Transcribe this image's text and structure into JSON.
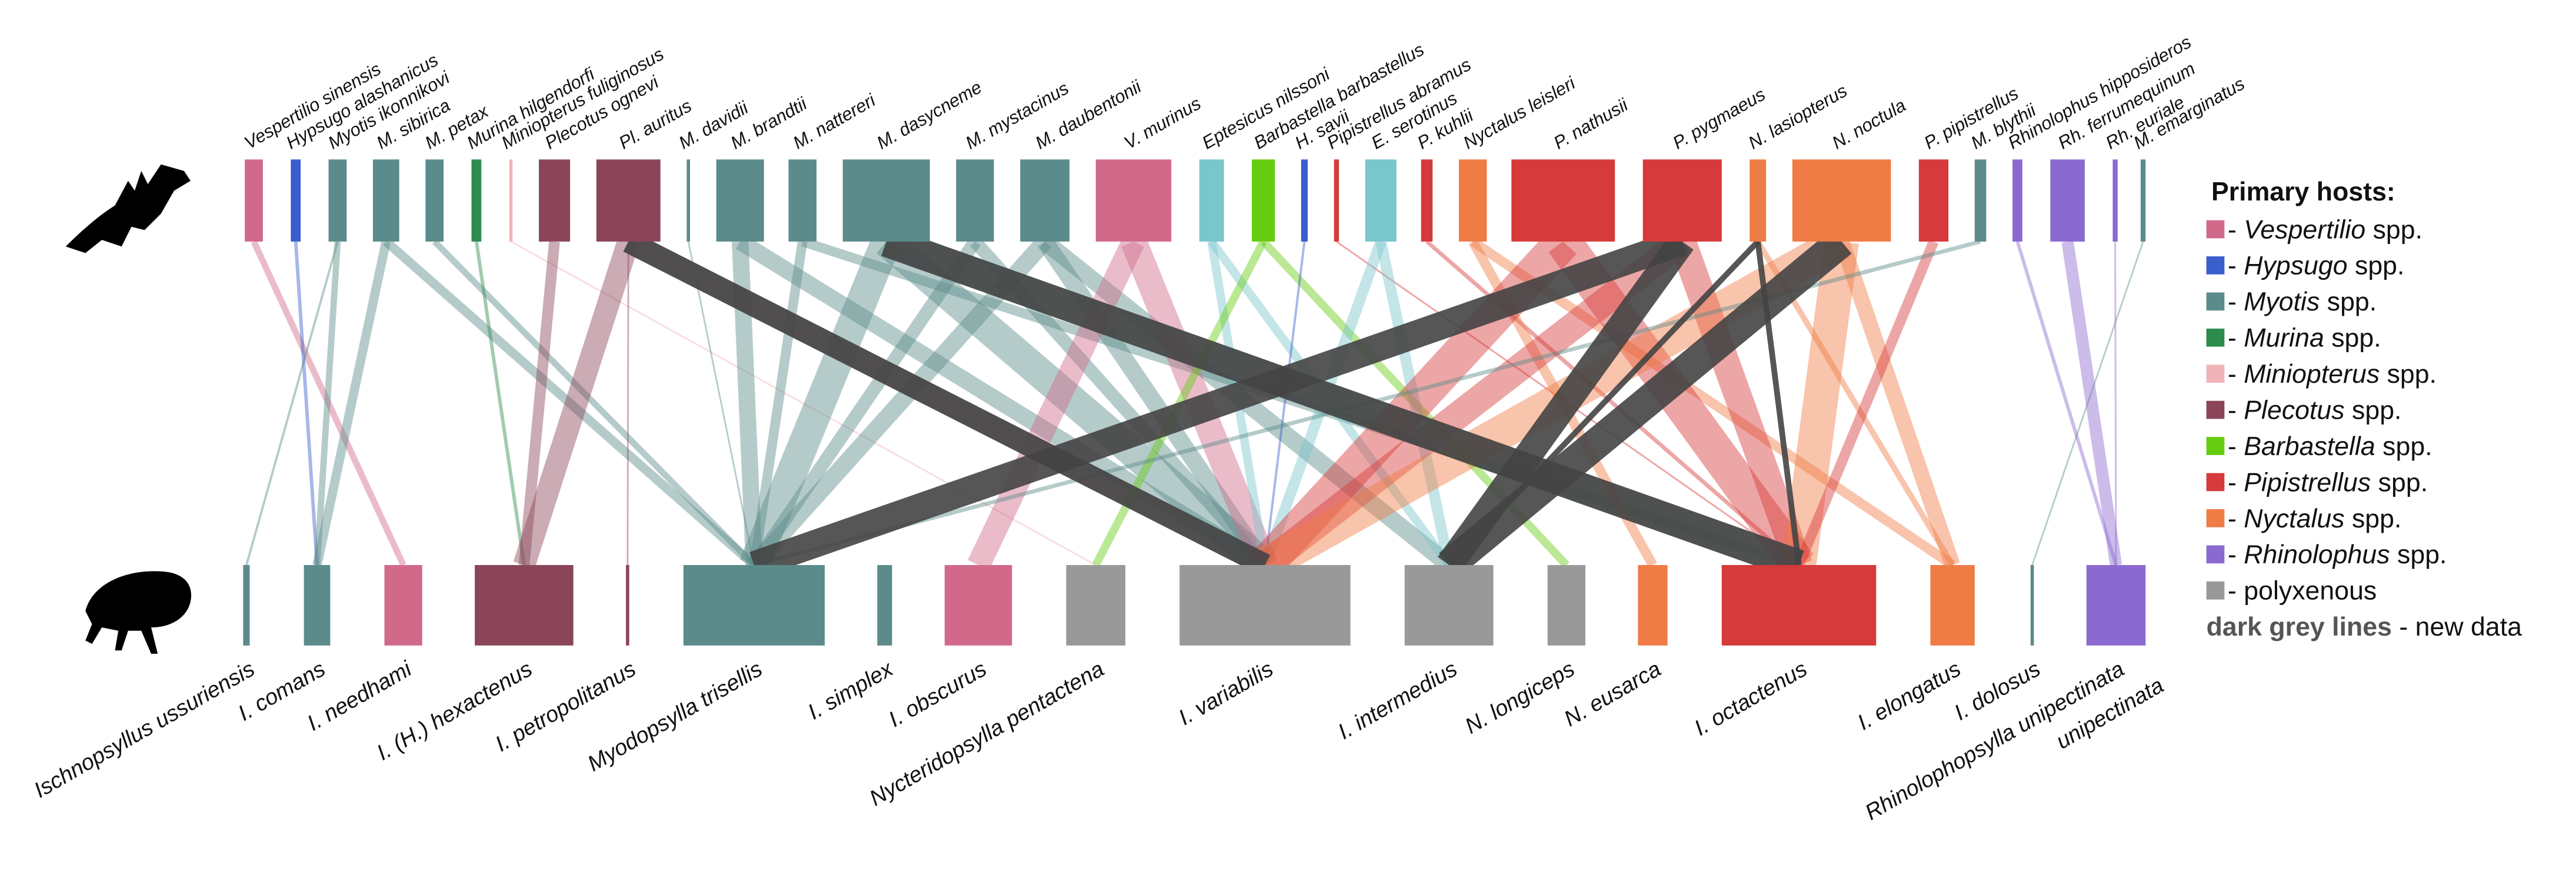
{
  "top_nodes": [
    {
      "label": "Vespertilio sinensis",
      "color": "#d16a8a"
    },
    {
      "label": "Hypsugo alashanicus",
      "color": "#3a5fcd"
    },
    {
      "label": "Myotis ikonnikovi",
      "color": "#5b8b8a"
    },
    {
      "label": "M. sibirica",
      "color": "#5b8b8a"
    },
    {
      "label": "M. petax",
      "color": "#5b8b8a"
    },
    {
      "label": "Murina hilgendorfi",
      "color": "#2e8b4e"
    },
    {
      "label": "Miniopterus fuliginosus",
      "color": "#f0b4b8"
    },
    {
      "label": "Plecotus ognevi",
      "color": "#8b4558"
    },
    {
      "label": "Pl. auritus",
      "color": "#8b4558"
    },
    {
      "label": "M. davidii",
      "color": "#5b8b8a"
    },
    {
      "label": "M. brandtii",
      "color": "#5b8b8a"
    },
    {
      "label": "M. nattereri",
      "color": "#5b8b8a"
    },
    {
      "label": "M. dasycneme",
      "color": "#5b8b8a"
    },
    {
      "label": "M. mystacinus",
      "color": "#5b8b8a"
    },
    {
      "label": "M. daubentonii",
      "color": "#5b8b8a"
    },
    {
      "label": "V. murinus",
      "color": "#d16a8a"
    },
    {
      "label": "Eptesicus nilssoni",
      "color": "#79c6cc"
    },
    {
      "label": "Barbastella barbastellus",
      "color": "#66cc11"
    },
    {
      "label": "H. savii",
      "color": "#3a5fcd"
    },
    {
      "label": "Pipistrellus abramus",
      "color": "#d63a3a"
    },
    {
      "label": "E. serotinus",
      "color": "#79c6cc"
    },
    {
      "label": "P. kuhlii",
      "color": "#d63a3a"
    },
    {
      "label": "Nyctalus leisleri",
      "color": "#ef7c45"
    },
    {
      "label": "P. nathusii",
      "color": "#d63a3a"
    },
    {
      "label": "P. pygmaeus",
      "color": "#d63a3a"
    },
    {
      "label": "N. lasiopterus",
      "color": "#ef7c45"
    },
    {
      "label": "N. noctula",
      "color": "#ef7c45"
    },
    {
      "label": "P. pipistrellus",
      "color": "#d63a3a"
    },
    {
      "label": "M. blythii",
      "color": "#5b8b8a"
    },
    {
      "label": "Rhinolophus hipposideros",
      "color": "#8b6ad0"
    },
    {
      "label": "Rh. ferrumequinum",
      "color": "#8b6ad0"
    },
    {
      "label": "Rh. euriale",
      "color": "#8b6ad0"
    },
    {
      "label": "M. emarginatus",
      "color": "#5b8b8a"
    }
  ],
  "bottom_nodes": [
    {
      "label": [
        "Ischnopsyllus ussuriensis"
      ],
      "color": "#5b8b8a"
    },
    {
      "label": [
        "I. comans"
      ],
      "color": "#5b8b8a"
    },
    {
      "label": [
        "I. needhami"
      ],
      "color": "#d16a8a"
    },
    {
      "label": [
        "I. (H.) hexactenus"
      ],
      "color": "#8b4558"
    },
    {
      "label": [
        "I. petropolitanus"
      ],
      "color": "#8b4558"
    },
    {
      "label": [
        "Myodopsylla trisellis"
      ],
      "color": "#5b8b8a"
    },
    {
      "label": [
        "I. simplex"
      ],
      "color": "#5b8b8a"
    },
    {
      "label": [
        "I. obscurus"
      ],
      "color": "#d16a8a"
    },
    {
      "label": [
        "Nycteridopsylla pentactena"
      ],
      "color": "#999999"
    },
    {
      "label": [
        "I. variabilis"
      ],
      "color": "#999999"
    },
    {
      "label": [
        "I. intermedius"
      ],
      "color": "#999999"
    },
    {
      "label": [
        "N. longiceps"
      ],
      "color": "#999999"
    },
    {
      "label": [
        "N. eusarca"
      ],
      "color": "#ef7c45"
    },
    {
      "label": [
        "I. octactenus"
      ],
      "color": "#d63a3a"
    },
    {
      "label": [
        "I. elongatus"
      ],
      "color": "#ef7c45"
    },
    {
      "label": [
        "I. dolosus"
      ],
      "color": "#5b8b8a"
    },
    {
      "label": [
        "Rhinolophopsylla unipectinata",
        "unipectinata"
      ],
      "color": "#8b6ad0"
    }
  ],
  "links": [
    [
      0,
      2
    ],
    [
      1,
      1
    ],
    [
      2,
      0
    ],
    [
      2,
      1
    ],
    [
      3,
      1
    ],
    [
      3,
      5
    ],
    [
      4,
      5
    ],
    [
      5,
      3
    ],
    [
      6,
      8
    ],
    [
      7,
      3
    ],
    [
      8,
      3
    ],
    [
      8,
      4
    ],
    [
      8,
      9
    ],
    [
      9,
      5
    ],
    [
      10,
      5
    ],
    [
      10,
      9
    ],
    [
      11,
      5
    ],
    [
      11,
      13
    ],
    [
      12,
      5
    ],
    [
      12,
      9
    ],
    [
      12,
      13
    ],
    [
      13,
      5
    ],
    [
      13,
      9
    ],
    [
      14,
      5
    ],
    [
      14,
      9
    ],
    [
      14,
      10
    ],
    [
      15,
      7
    ],
    [
      15,
      9
    ],
    [
      16,
      9
    ],
    [
      16,
      10
    ],
    [
      17,
      8
    ],
    [
      17,
      11
    ],
    [
      18,
      9
    ],
    [
      19,
      13
    ],
    [
      20,
      9
    ],
    [
      20,
      10
    ],
    [
      21,
      13
    ],
    [
      22,
      12
    ],
    [
      22,
      14
    ],
    [
      23,
      9
    ],
    [
      23,
      13
    ],
    [
      24,
      13
    ],
    [
      24,
      9
    ],
    [
      25,
      14
    ],
    [
      26,
      14
    ],
    [
      26,
      13
    ],
    [
      26,
      9
    ],
    [
      27,
      13
    ],
    [
      28,
      5
    ],
    [
      29,
      16
    ],
    [
      30,
      16
    ],
    [
      31,
      16
    ],
    [
      32,
      15
    ]
  ],
  "new_links": [
    [
      12,
      13
    ],
    [
      24,
      10
    ],
    [
      25,
      10
    ],
    [
      25,
      13
    ],
    [
      26,
      10
    ],
    [
      24,
      5
    ],
    [
      8,
      9
    ]
  ],
  "new_link_color": "#444444",
  "legend": {
    "title": "Primary hosts:",
    "items": [
      {
        "color": "#d16a8a",
        "dash": "-",
        "genus": "Vespertilio",
        "suffix": "spp."
      },
      {
        "color": "#3a5fcd",
        "dash": "-",
        "genus": "Hypsugo",
        "suffix": "spp."
      },
      {
        "color": "#5b8b8a",
        "dash": "-",
        "genus": "Myotis",
        "suffix": "spp."
      },
      {
        "color": "#2e8b4e",
        "dash": "-",
        "genus": "Murina",
        "suffix": "spp."
      },
      {
        "color": "#f0b4b8",
        "dash": "-",
        "genus": "Miniopterus",
        "suffix": "spp."
      },
      {
        "color": "#8b4558",
        "dash": "-",
        "genus": "Plecotus",
        "suffix": "spp."
      },
      {
        "color": "#66cc11",
        "dash": "-",
        "genus": "Barbastella",
        "suffix": "spp."
      },
      {
        "color": "#d63a3a",
        "dash": "-",
        "genus": "Pipistrellus",
        "suffix": "spp."
      },
      {
        "color": "#ef7c45",
        "dash": "-",
        "genus": "Nyctalus",
        "suffix": "spp."
      },
      {
        "color": "#8b6ad0",
        "dash": "-",
        "genus": "Rhinolophus",
        "suffix": "spp."
      },
      {
        "color": "#999999",
        "dash": "-",
        "suffix": "polyxenous"
      }
    ],
    "note_bold": "dark grey lines",
    "note_rest": "- new data"
  }
}
